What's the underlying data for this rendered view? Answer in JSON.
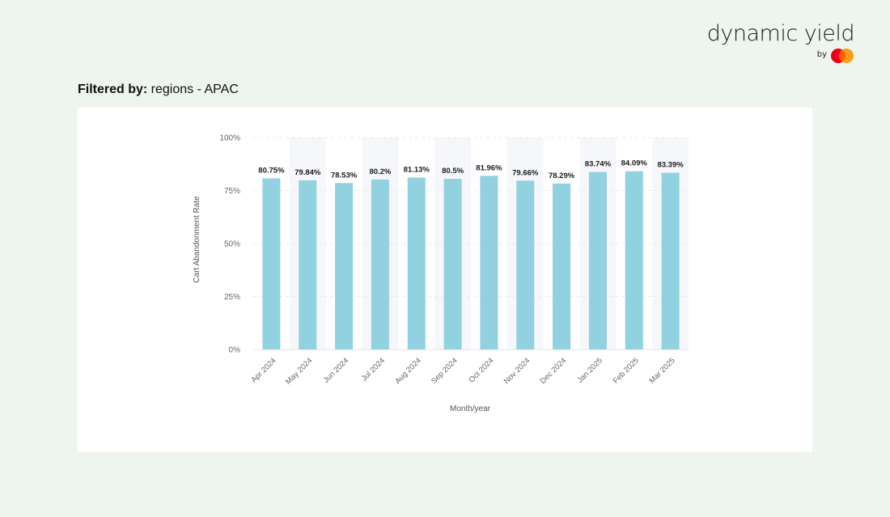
{
  "brand": {
    "name": "dynamic yield",
    "by": "by",
    "logo_icon": "mastercard-logo-icon",
    "logo_colors": [
      "#eb001b",
      "#f79e1b",
      "#ff5f00"
    ]
  },
  "filter": {
    "label": "Filtered by:",
    "value": " regions - APAC"
  },
  "chart_data": {
    "type": "bar",
    "categories": [
      "Apr 2024",
      "May 2024",
      "Jun 2024",
      "Jul 2024",
      "Aug 2024",
      "Sep 2024",
      "Oct 2024",
      "Nov 2024",
      "Dec 2024",
      "Jan 2025",
      "Feb 2025",
      "Mar 2025"
    ],
    "values": [
      80.75,
      79.84,
      78.53,
      80.2,
      81.13,
      80.5,
      81.96,
      79.66,
      78.29,
      83.74,
      84.09,
      83.39
    ],
    "value_labels": [
      "80.75%",
      "79.84%",
      "78.53%",
      "80.2%",
      "81.13%",
      "80.5%",
      "81.96%",
      "79.66%",
      "78.29%",
      "83.74%",
      "84.09%",
      "83.39%"
    ],
    "xlabel": "Month/year",
    "ylabel": "Cart Abandonment Rate",
    "ylim": [
      0,
      100
    ],
    "yticks": [
      0,
      25,
      50,
      75,
      100
    ],
    "ytick_labels": [
      "0%",
      "25%",
      "50%",
      "75%",
      "100%"
    ],
    "grid": true,
    "bar_color": "#91d1e0",
    "band_color": "#f6f7fb"
  }
}
